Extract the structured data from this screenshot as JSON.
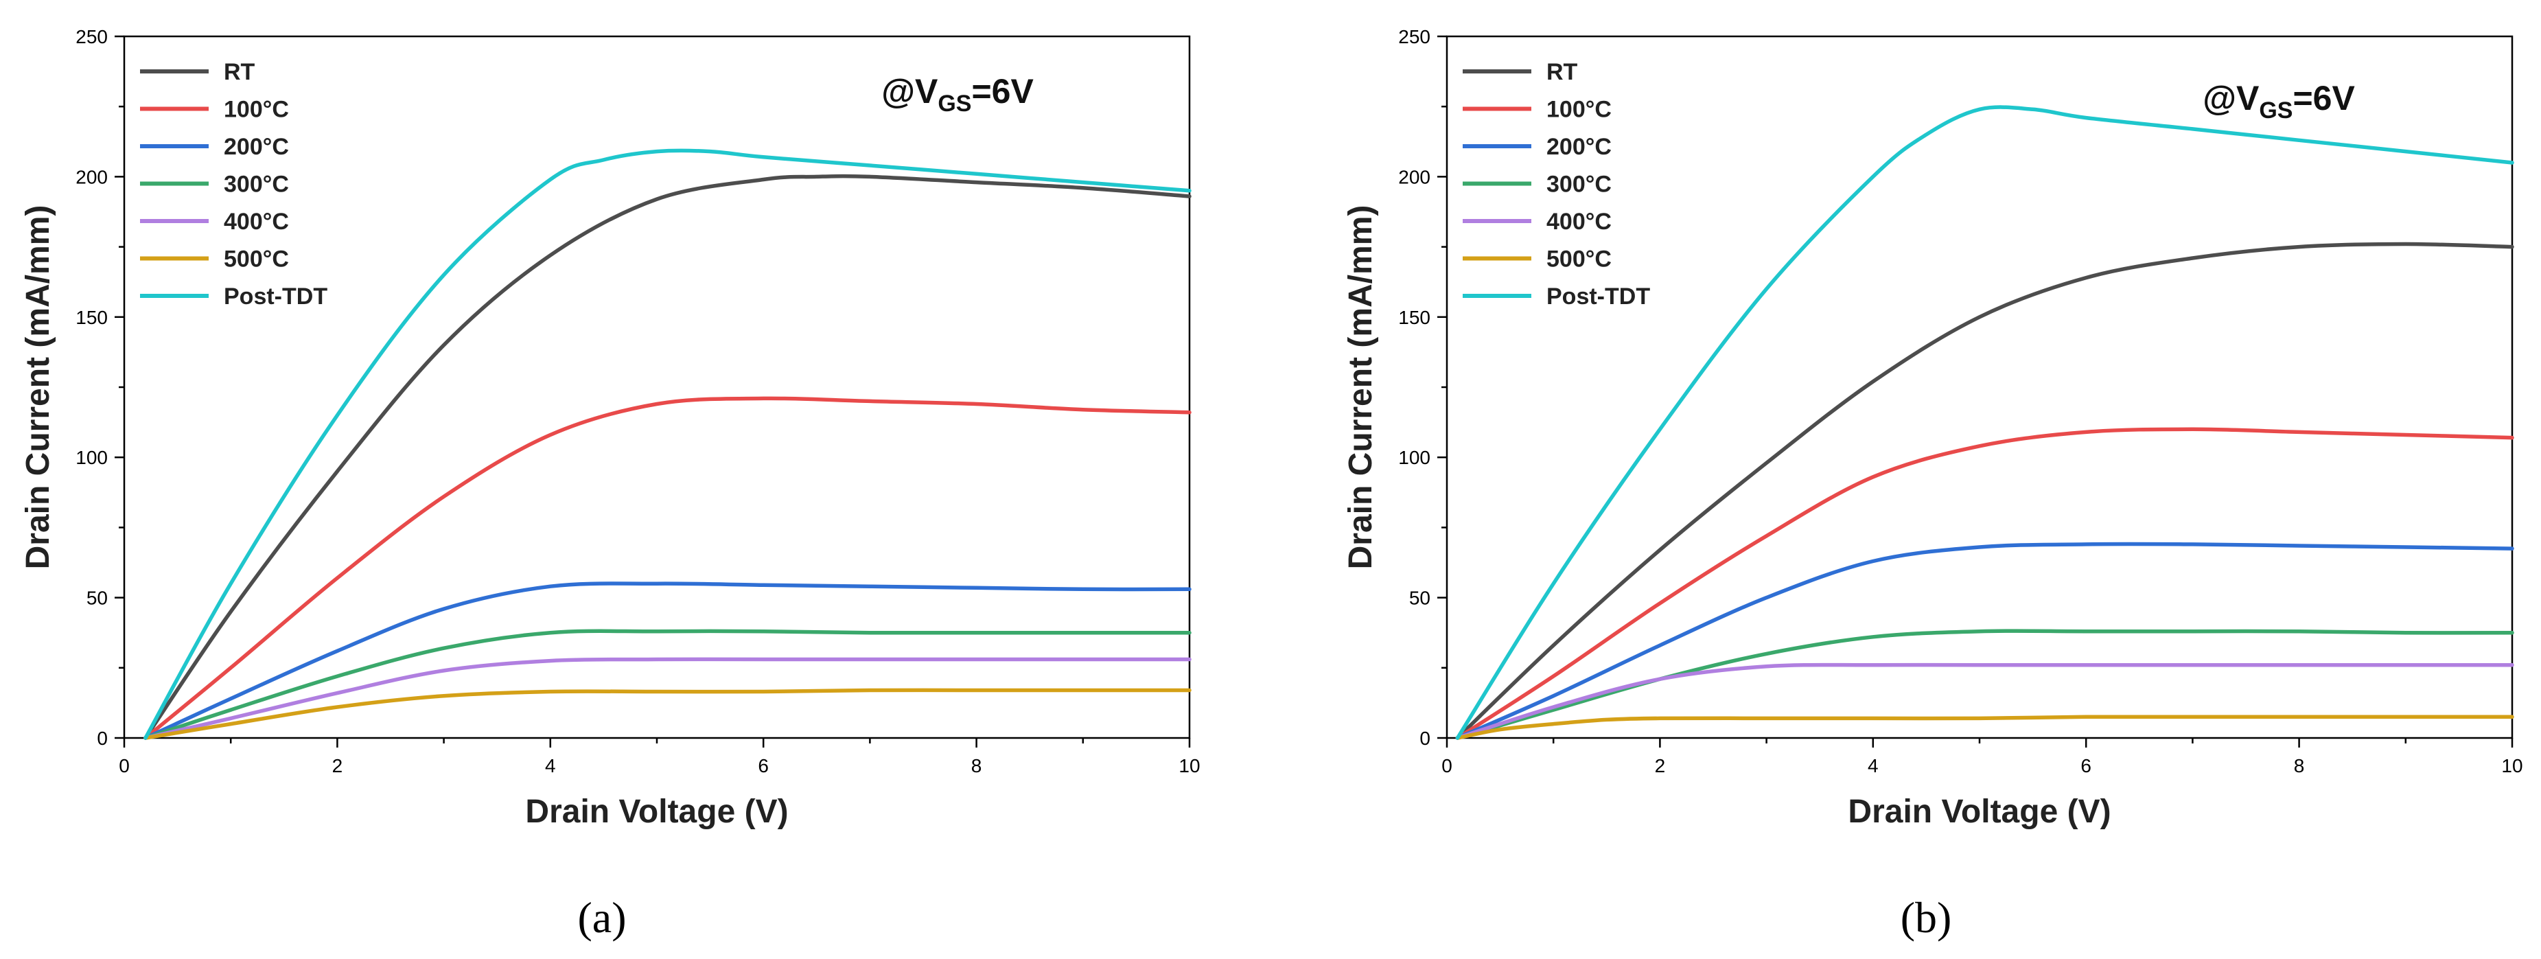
{
  "chart_data": [
    {
      "type": "line",
      "panel_label": "(a)",
      "xlabel": "Drain Voltage (V)",
      "ylabel": "Drain Current (mA/mm)",
      "annotation": {
        "prefix": "@V",
        "sub": "GS",
        "suffix": "=6V"
      },
      "xlim": [
        0,
        10
      ],
      "ylim": [
        0,
        250
      ],
      "xticks": [
        0,
        2,
        4,
        6,
        8,
        10
      ],
      "yticks": [
        0,
        50,
        100,
        150,
        200,
        250
      ],
      "grid": false,
      "legend_position": "top-left",
      "series": [
        {
          "name": "RT",
          "color": "#4d4d4d",
          "x": [
            0.2,
            1,
            2,
            3,
            4,
            5,
            6,
            6.5,
            7,
            8,
            9,
            10
          ],
          "y": [
            0,
            45,
            95,
            140,
            172,
            192,
            199,
            200,
            200,
            198,
            196,
            193
          ]
        },
        {
          "name": "100°C",
          "color": "#e84a4a",
          "x": [
            0.2,
            1,
            2,
            3,
            4,
            5,
            6,
            7,
            8,
            9,
            10
          ],
          "y": [
            0,
            25,
            57,
            86,
            108,
            119,
            121,
            120,
            119,
            117,
            116
          ]
        },
        {
          "name": "200°C",
          "color": "#2f6fd4",
          "x": [
            0.2,
            1,
            2,
            3,
            4,
            5,
            6,
            7,
            8,
            9,
            10
          ],
          "y": [
            0,
            14,
            31,
            46,
            54,
            55,
            54.5,
            54,
            53.5,
            53,
            53
          ]
        },
        {
          "name": "300°C",
          "color": "#3aa86b",
          "x": [
            0.2,
            1,
            2,
            3,
            4,
            5,
            6,
            7,
            8,
            9,
            10
          ],
          "y": [
            0,
            10,
            22,
            32,
            37.5,
            38,
            38,
            37.5,
            37.5,
            37.5,
            37.5
          ]
        },
        {
          "name": "400°C",
          "color": "#b07fe0",
          "x": [
            0.2,
            1,
            2,
            3,
            4,
            5,
            6,
            7,
            8,
            9,
            10
          ],
          "y": [
            0,
            7,
            16,
            24,
            27.5,
            28,
            28,
            28,
            28,
            28,
            28
          ]
        },
        {
          "name": "500°C",
          "color": "#d4a017",
          "x": [
            0.2,
            1,
            2,
            3,
            4,
            5,
            6,
            7,
            8,
            9,
            10
          ],
          "y": [
            0,
            5,
            11,
            15,
            16.5,
            16.5,
            16.5,
            17,
            17,
            17,
            17
          ]
        },
        {
          "name": "Post-TDT",
          "color": "#1fc6cc",
          "x": [
            0.2,
            1,
            2,
            3,
            4,
            4.5,
            5,
            5.5,
            6,
            7,
            8,
            9,
            10
          ],
          "y": [
            0,
            55,
            115,
            165,
            199,
            206,
            209,
            209,
            207,
            204,
            201,
            198,
            195
          ]
        }
      ]
    },
    {
      "type": "line",
      "panel_label": "(b)",
      "xlabel": "Drain Voltage (V)",
      "ylabel": "Drain Current (mA/mm)",
      "annotation": {
        "prefix": "@V",
        "sub": "GS",
        "suffix": "=6V"
      },
      "xlim": [
        0,
        10
      ],
      "ylim": [
        0,
        250
      ],
      "xticks": [
        0,
        2,
        4,
        6,
        8,
        10
      ],
      "yticks": [
        0,
        50,
        100,
        150,
        200,
        250
      ],
      "grid": false,
      "legend_position": "top-left",
      "series": [
        {
          "name": "RT",
          "color": "#4d4d4d",
          "x": [
            0.1,
            1,
            2,
            3,
            4,
            5,
            6,
            7,
            8,
            9,
            10
          ],
          "y": [
            0,
            33,
            67,
            98,
            127,
            150,
            164,
            171,
            175,
            176,
            175
          ]
        },
        {
          "name": "100°C",
          "color": "#e84a4a",
          "x": [
            0.1,
            1,
            2,
            3,
            4,
            5,
            6,
            7,
            8,
            9,
            10
          ],
          "y": [
            0,
            22,
            48,
            72,
            93,
            104,
            109,
            110,
            109,
            108,
            107
          ]
        },
        {
          "name": "200°C",
          "color": "#2f6fd4",
          "x": [
            0.1,
            1,
            2,
            3,
            4,
            5,
            6,
            7,
            8,
            9,
            10
          ],
          "y": [
            0,
            15,
            33,
            50,
            63,
            68,
            69,
            69,
            68.5,
            68,
            67.5
          ]
        },
        {
          "name": "300°C",
          "color": "#3aa86b",
          "x": [
            0.1,
            1,
            2,
            3,
            4,
            5,
            6,
            7,
            8,
            9,
            10
          ],
          "y": [
            0,
            10,
            21,
            30,
            36,
            38,
            38,
            38,
            38,
            37.5,
            37.5
          ]
        },
        {
          "name": "400°C",
          "color": "#b07fe0",
          "x": [
            0.1,
            1,
            2,
            3,
            4,
            5,
            6,
            7,
            8,
            9,
            10
          ],
          "y": [
            0,
            11,
            21,
            25.5,
            26,
            26,
            26,
            26,
            26,
            26,
            26
          ]
        },
        {
          "name": "500°C",
          "color": "#d4a017",
          "x": [
            0.1,
            0.5,
            1,
            1.5,
            2,
            3,
            4,
            5,
            6,
            7,
            8,
            9,
            10
          ],
          "y": [
            0,
            3,
            5,
            6.5,
            7,
            7,
            7,
            7,
            7.5,
            7.5,
            7.5,
            7.5,
            7.5
          ]
        },
        {
          "name": "Post-TDT",
          "color": "#1fc6cc",
          "x": [
            0.1,
            1,
            2,
            3,
            4,
            4.5,
            5,
            5.5,
            6,
            7,
            8,
            9,
            10
          ],
          "y": [
            0,
            55,
            110,
            160,
            200,
            215,
            224,
            224,
            221,
            217,
            213,
            209,
            205
          ]
        }
      ]
    }
  ]
}
